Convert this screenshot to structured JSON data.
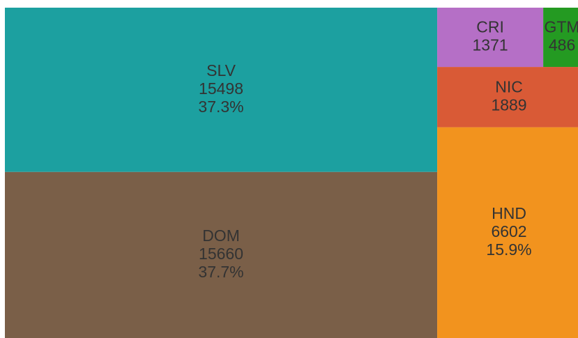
{
  "chart_data": {
    "type": "treemap",
    "categories": [
      "SLV",
      "DOM",
      "HND",
      "NIC",
      "CRI",
      "GTM"
    ],
    "values": [
      15498,
      15660,
      6602,
      1889,
      1371,
      486
    ],
    "percent_labels": [
      "37.3%",
      "37.7%",
      "15.9%",
      null,
      null,
      null
    ],
    "colors": [
      "#1ca0a0",
      "#7a5f48",
      "#f2931e",
      "#d95a36",
      "#b56fc6",
      "#249a22"
    ]
  }
}
